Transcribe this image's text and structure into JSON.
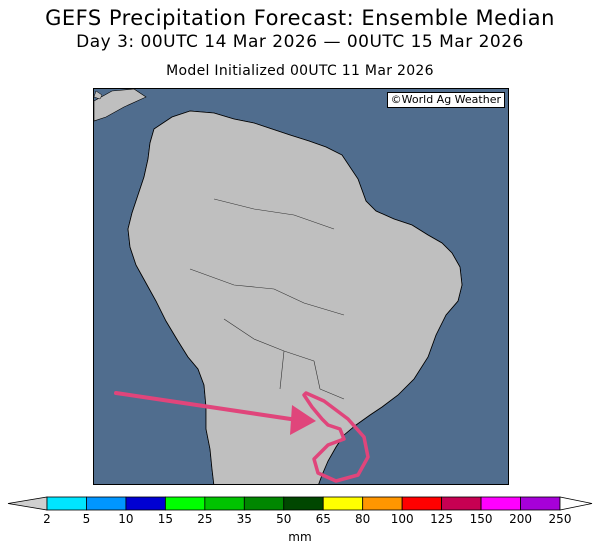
{
  "header": {
    "title": "GEFS Precipitation Forecast: Ensemble Median",
    "valid_period": "Day 3: 00UTC 14 Mar 2026 — 00UTC 15 Mar 2026",
    "init": "Model Initialized 00UTC 11 Mar 2026"
  },
  "map": {
    "credit": "©World Ag Weather",
    "ocean_color": "#506d8e",
    "land_color": "#bfbfbf",
    "annotation_color": "#e0457b"
  },
  "colorbar": {
    "unit": "mm",
    "ticks": [
      "2",
      "5",
      "10",
      "15",
      "25",
      "35",
      "50",
      "65",
      "80",
      "100",
      "125",
      "150",
      "200",
      "250"
    ],
    "colors": [
      "#00e5ff",
      "#0096ff",
      "#0000d2",
      "#00ff00",
      "#00c300",
      "#008700",
      "#004700",
      "#ffff00",
      "#ff9600",
      "#ff0000",
      "#c70052",
      "#ff00ff",
      "#a600d9"
    ]
  }
}
